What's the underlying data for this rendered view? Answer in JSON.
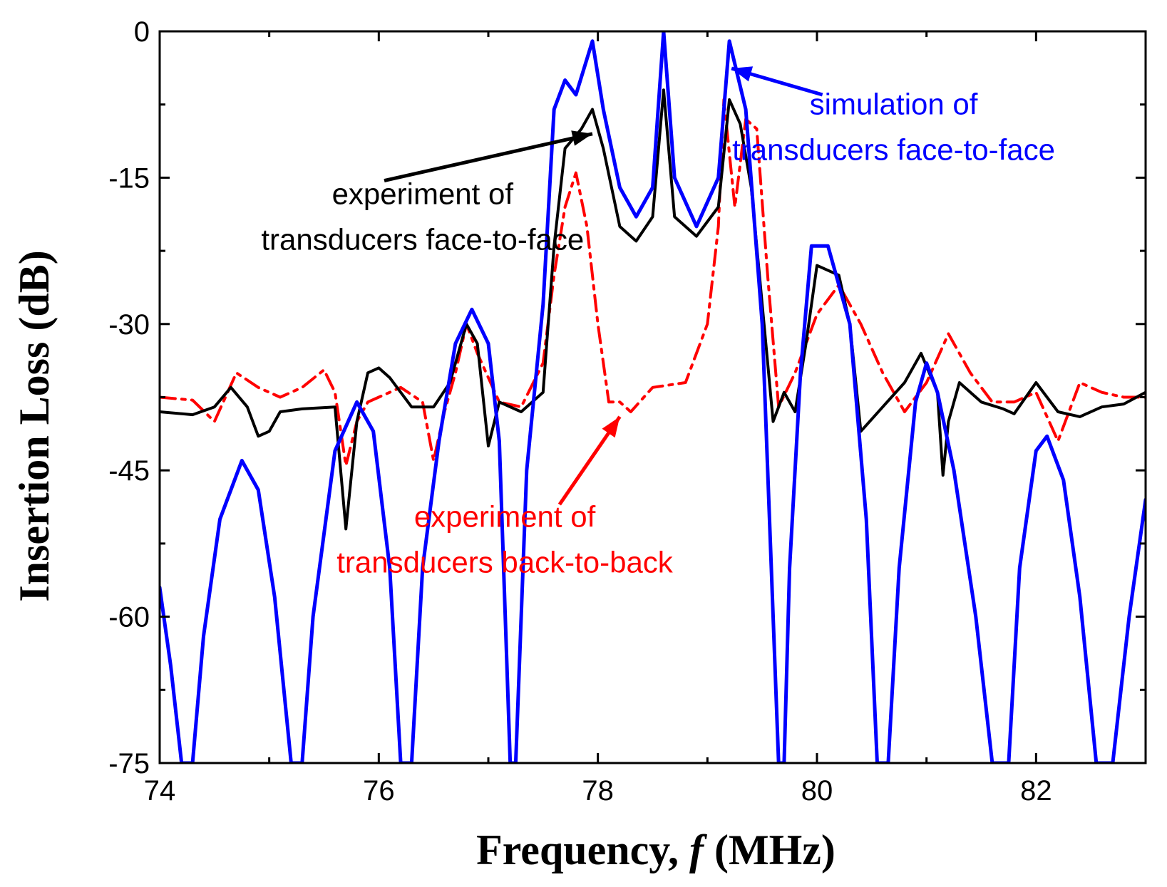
{
  "chart_data": {
    "type": "line",
    "title": "",
    "xlabel": {
      "main": "Frequency, ",
      "var": "f",
      "unit": " (MHz)"
    },
    "ylabel": "Insertion Loss (dB)",
    "xlim": [
      74,
      83
    ],
    "ylim": [
      -75,
      0
    ],
    "xticks": [
      74,
      76,
      78,
      80,
      82
    ],
    "yticks": [
      0,
      -15,
      -30,
      -45,
      -60,
      -75
    ],
    "grid": false,
    "series": [
      {
        "name": "experiment of transducers back-to-back",
        "color": "#ff0000",
        "style": "dashdot",
        "points": [
          [
            74.0,
            -37.5
          ],
          [
            74.3,
            -37.8
          ],
          [
            74.5,
            -40
          ],
          [
            74.7,
            -35
          ],
          [
            74.9,
            -36.5
          ],
          [
            75.1,
            -37.5
          ],
          [
            75.3,
            -36.5
          ],
          [
            75.5,
            -34.7
          ],
          [
            75.6,
            -37
          ],
          [
            75.7,
            -44.5
          ],
          [
            75.8,
            -40
          ],
          [
            75.9,
            -38
          ],
          [
            76.0,
            -37.5
          ],
          [
            76.2,
            -36.5
          ],
          [
            76.4,
            -38
          ],
          [
            76.5,
            -44
          ],
          [
            76.6,
            -39
          ],
          [
            76.7,
            -35
          ],
          [
            76.8,
            -30
          ],
          [
            76.9,
            -33
          ],
          [
            77.1,
            -38
          ],
          [
            77.3,
            -38.5
          ],
          [
            77.5,
            -34
          ],
          [
            77.6,
            -25
          ],
          [
            77.7,
            -18
          ],
          [
            77.8,
            -14.5
          ],
          [
            77.9,
            -20
          ],
          [
            78.0,
            -30
          ],
          [
            78.1,
            -38
          ],
          [
            78.2,
            -38
          ],
          [
            78.3,
            -39
          ],
          [
            78.5,
            -36.5
          ],
          [
            78.8,
            -36
          ],
          [
            79.0,
            -30
          ],
          [
            79.1,
            -20
          ],
          [
            79.15,
            -7
          ],
          [
            79.25,
            -18
          ],
          [
            79.35,
            -9
          ],
          [
            79.45,
            -10
          ],
          [
            79.55,
            -25
          ],
          [
            79.65,
            -38.5
          ],
          [
            79.8,
            -35
          ],
          [
            80.0,
            -29
          ],
          [
            80.2,
            -26
          ],
          [
            80.4,
            -30
          ],
          [
            80.6,
            -35
          ],
          [
            80.8,
            -39
          ],
          [
            81.0,
            -36
          ],
          [
            81.2,
            -31
          ],
          [
            81.4,
            -35
          ],
          [
            81.6,
            -38
          ],
          [
            81.8,
            -38
          ],
          [
            82.0,
            -37
          ],
          [
            82.2,
            -42
          ],
          [
            82.4,
            -36
          ],
          [
            82.6,
            -37
          ],
          [
            82.8,
            -37.5
          ],
          [
            83.0,
            -37.5
          ]
        ]
      },
      {
        "name": "experiment of transducers face-to-face",
        "color": "#000000",
        "style": "solid",
        "points": [
          [
            74.0,
            -39
          ],
          [
            74.3,
            -39.3
          ],
          [
            74.5,
            -38.5
          ],
          [
            74.65,
            -36.5
          ],
          [
            74.8,
            -38.5
          ],
          [
            74.9,
            -41.5
          ],
          [
            75.0,
            -41
          ],
          [
            75.1,
            -39
          ],
          [
            75.3,
            -38.7
          ],
          [
            75.6,
            -38.5
          ],
          [
            75.7,
            -51
          ],
          [
            75.8,
            -40
          ],
          [
            75.9,
            -35
          ],
          [
            76.0,
            -34.5
          ],
          [
            76.1,
            -35.5
          ],
          [
            76.3,
            -38.5
          ],
          [
            76.5,
            -38.5
          ],
          [
            76.65,
            -36
          ],
          [
            76.8,
            -30
          ],
          [
            76.9,
            -32
          ],
          [
            77.0,
            -42.5
          ],
          [
            77.1,
            -38
          ],
          [
            77.3,
            -39
          ],
          [
            77.5,
            -37
          ],
          [
            77.6,
            -22
          ],
          [
            77.7,
            -12
          ],
          [
            77.85,
            -10
          ],
          [
            77.95,
            -8
          ],
          [
            78.05,
            -12
          ],
          [
            78.2,
            -20
          ],
          [
            78.35,
            -21.5
          ],
          [
            78.5,
            -19
          ],
          [
            78.6,
            -6
          ],
          [
            78.7,
            -19
          ],
          [
            78.9,
            -21
          ],
          [
            79.1,
            -18
          ],
          [
            79.2,
            -7
          ],
          [
            79.3,
            -9.5
          ],
          [
            79.4,
            -16
          ],
          [
            79.5,
            -28
          ],
          [
            79.6,
            -40
          ],
          [
            79.7,
            -37
          ],
          [
            79.8,
            -39
          ],
          [
            79.9,
            -32
          ],
          [
            80.0,
            -24
          ],
          [
            80.2,
            -25
          ],
          [
            80.3,
            -30
          ],
          [
            80.4,
            -41
          ],
          [
            80.6,
            -38.5
          ],
          [
            80.8,
            -36
          ],
          [
            80.95,
            -33
          ],
          [
            81.1,
            -37
          ],
          [
            81.15,
            -45.5
          ],
          [
            81.2,
            -40
          ],
          [
            81.3,
            -36
          ],
          [
            81.5,
            -38
          ],
          [
            81.7,
            -38.7
          ],
          [
            81.8,
            -39.2
          ],
          [
            82.0,
            -36
          ],
          [
            82.2,
            -39
          ],
          [
            82.4,
            -39.5
          ],
          [
            82.6,
            -38.5
          ],
          [
            82.8,
            -38.2
          ],
          [
            83.0,
            -37
          ]
        ]
      },
      {
        "name": "simulation of transducers face-to-face",
        "color": "#0000ff",
        "style": "solid",
        "points": [
          [
            74.0,
            -57
          ],
          [
            74.1,
            -65
          ],
          [
            74.2,
            -75
          ],
          [
            74.3,
            -75
          ],
          [
            74.4,
            -62
          ],
          [
            74.55,
            -50
          ],
          [
            74.75,
            -44
          ],
          [
            74.9,
            -47
          ],
          [
            75.05,
            -58
          ],
          [
            75.2,
            -75
          ],
          [
            75.3,
            -75
          ],
          [
            75.4,
            -60
          ],
          [
            75.6,
            -43
          ],
          [
            75.8,
            -38
          ],
          [
            75.95,
            -41
          ],
          [
            76.1,
            -55
          ],
          [
            76.2,
            -75
          ],
          [
            76.3,
            -75
          ],
          [
            76.4,
            -55
          ],
          [
            76.55,
            -42
          ],
          [
            76.7,
            -32
          ],
          [
            76.85,
            -28.5
          ],
          [
            77.0,
            -32
          ],
          [
            77.1,
            -42
          ],
          [
            77.2,
            -75
          ],
          [
            77.25,
            -75
          ],
          [
            77.35,
            -45
          ],
          [
            77.5,
            -28
          ],
          [
            77.6,
            -8
          ],
          [
            77.7,
            -5
          ],
          [
            77.8,
            -6.5
          ],
          [
            77.95,
            -1
          ],
          [
            78.05,
            -8
          ],
          [
            78.2,
            -16
          ],
          [
            78.35,
            -19
          ],
          [
            78.5,
            -16
          ],
          [
            78.6,
            0
          ],
          [
            78.7,
            -15
          ],
          [
            78.9,
            -20
          ],
          [
            79.1,
            -15
          ],
          [
            79.2,
            -1
          ],
          [
            79.35,
            -8
          ],
          [
            79.5,
            -30
          ],
          [
            79.6,
            -60
          ],
          [
            79.65,
            -75
          ],
          [
            79.7,
            -75
          ],
          [
            79.75,
            -55
          ],
          [
            79.85,
            -35
          ],
          [
            79.95,
            -22
          ],
          [
            80.1,
            -22
          ],
          [
            80.3,
            -30
          ],
          [
            80.45,
            -50
          ],
          [
            80.55,
            -75
          ],
          [
            80.65,
            -75
          ],
          [
            80.75,
            -55
          ],
          [
            80.9,
            -38
          ],
          [
            81.0,
            -34
          ],
          [
            81.1,
            -37
          ],
          [
            81.25,
            -45
          ],
          [
            81.45,
            -60
          ],
          [
            81.6,
            -75
          ],
          [
            81.75,
            -75
          ],
          [
            81.85,
            -55
          ],
          [
            82.0,
            -43
          ],
          [
            82.1,
            -41.5
          ],
          [
            82.25,
            -46
          ],
          [
            82.4,
            -58
          ],
          [
            82.55,
            -75
          ],
          [
            82.7,
            -75
          ],
          [
            82.85,
            -60
          ],
          [
            83.0,
            -48
          ]
        ]
      }
    ],
    "annotations": [
      {
        "name": "annot-simulation",
        "color": "#0000ff",
        "lines": [
          "simulation of",
          "transducers face-to-face"
        ],
        "align": "middle"
      },
      {
        "name": "annot-experiment-face",
        "color": "#000000",
        "lines": [
          "experiment of",
          "transducers face-to-face"
        ],
        "align": "middle"
      },
      {
        "name": "annot-experiment-back",
        "color": "#ff0000",
        "lines": [
          "experiment of",
          "transducers back-to-back"
        ],
        "align": "middle"
      }
    ]
  }
}
